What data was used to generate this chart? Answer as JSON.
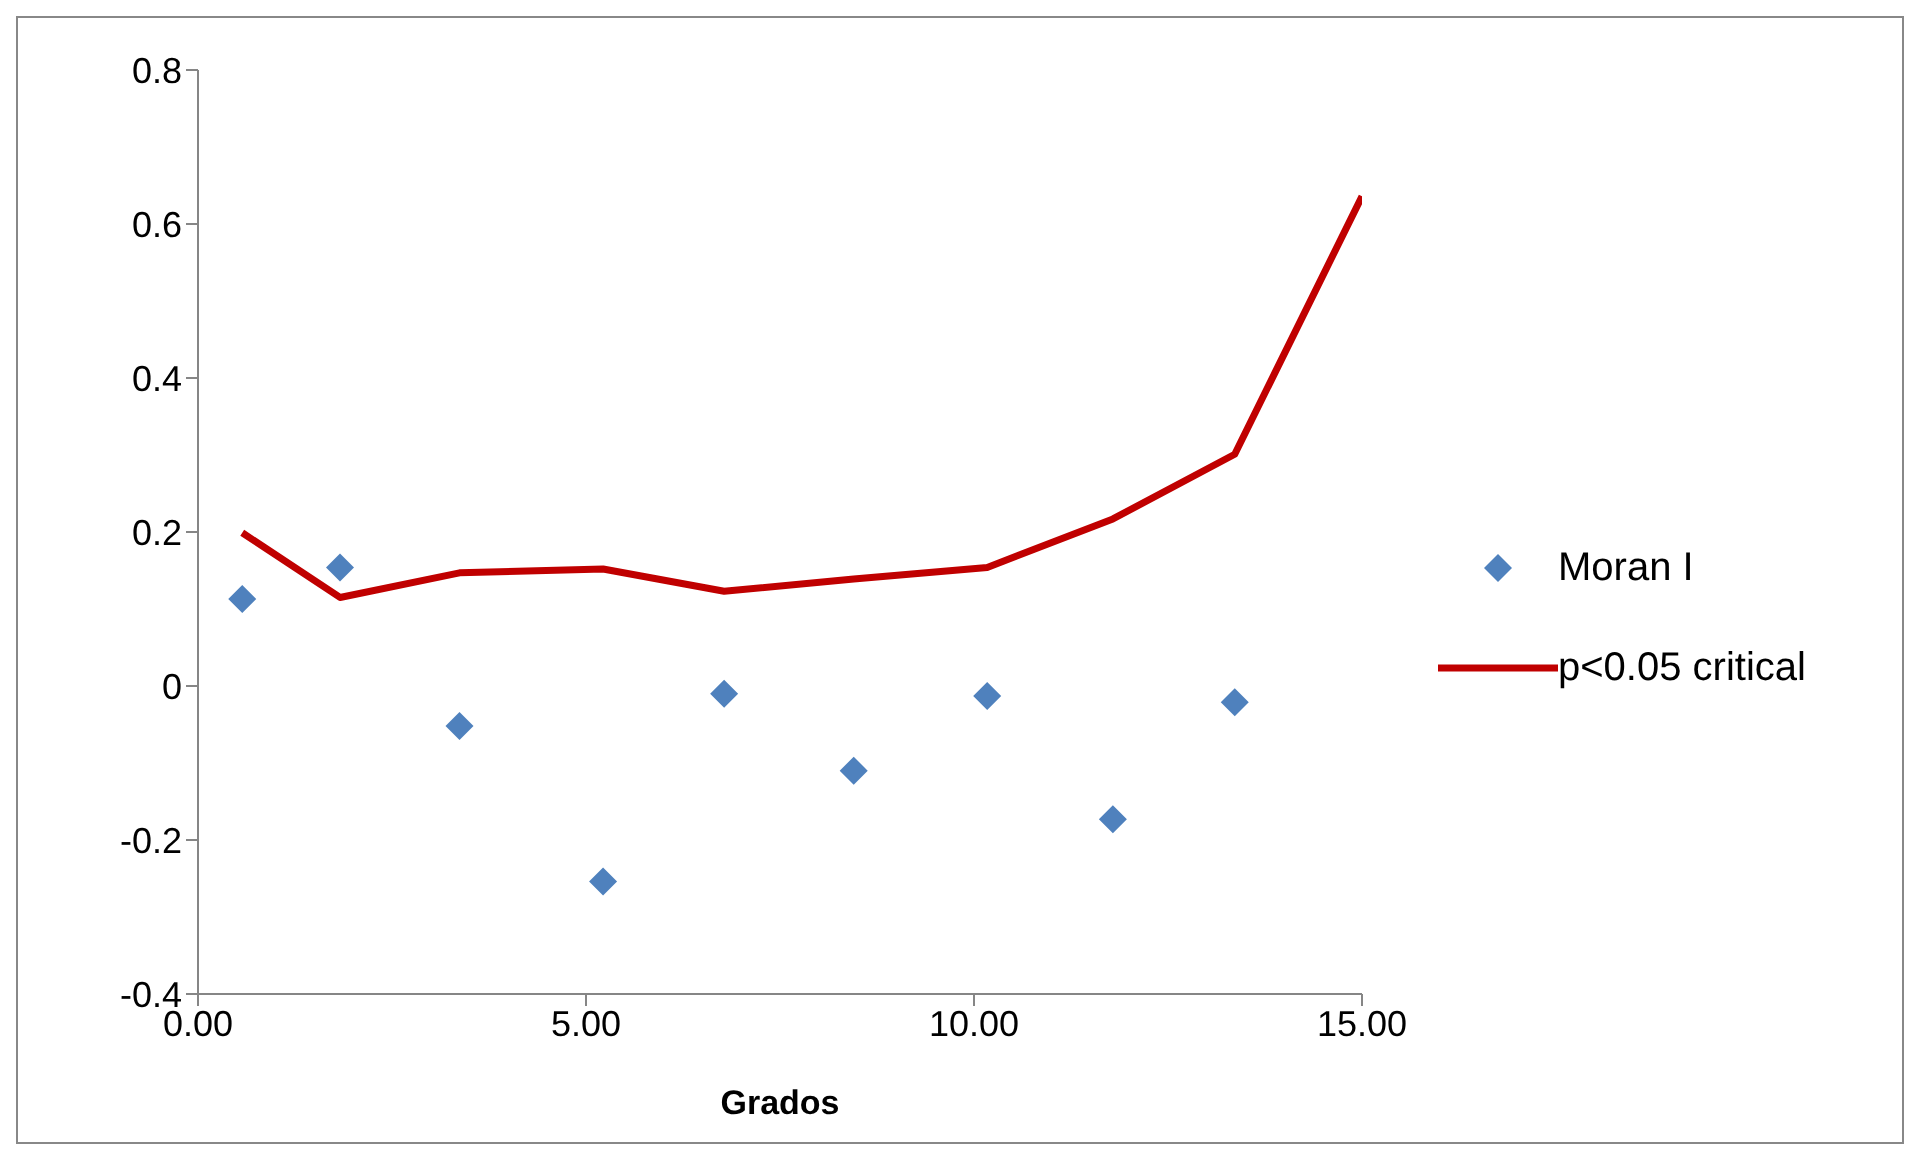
{
  "chart_data": {
    "type": "scatter",
    "xlabel": "Grados",
    "legend": "right",
    "xlim": [
      0,
      15
    ],
    "xticks": [
      {
        "value": 0,
        "label": "0.00"
      },
      {
        "value": 5,
        "label": "5.00"
      },
      {
        "value": 10,
        "label": "10.00"
      },
      {
        "value": 15,
        "label": "15.00"
      }
    ],
    "ylim": [
      -0.4,
      0.8
    ],
    "yticks": [
      -0.4,
      -0.2,
      0,
      0.2,
      0.4,
      0.6,
      0.8
    ],
    "grid": false,
    "series": [
      {
        "name": "Moran I",
        "marker": "diamond",
        "color": "#4f81bd",
        "x": [
          0.57,
          1.83,
          3.37,
          5.22,
          6.78,
          8.45,
          10.17,
          11.79,
          13.36
        ],
        "values": [
          0.113,
          0.154,
          -0.052,
          -0.254,
          -0.01,
          -0.11,
          -0.013,
          -0.173,
          -0.021
        ]
      },
      {
        "name": "p<0.05 critical",
        "type": "line",
        "marker": "none",
        "color": "#c00000",
        "x": [
          0.57,
          1.83,
          3.37,
          5.22,
          6.78,
          8.45,
          10.17,
          11.79,
          13.36,
          15
        ],
        "values": [
          0.199,
          0.115,
          0.147,
          0.152,
          0.123,
          0.139,
          0.154,
          0.217,
          0.301,
          0.636
        ]
      }
    ]
  }
}
